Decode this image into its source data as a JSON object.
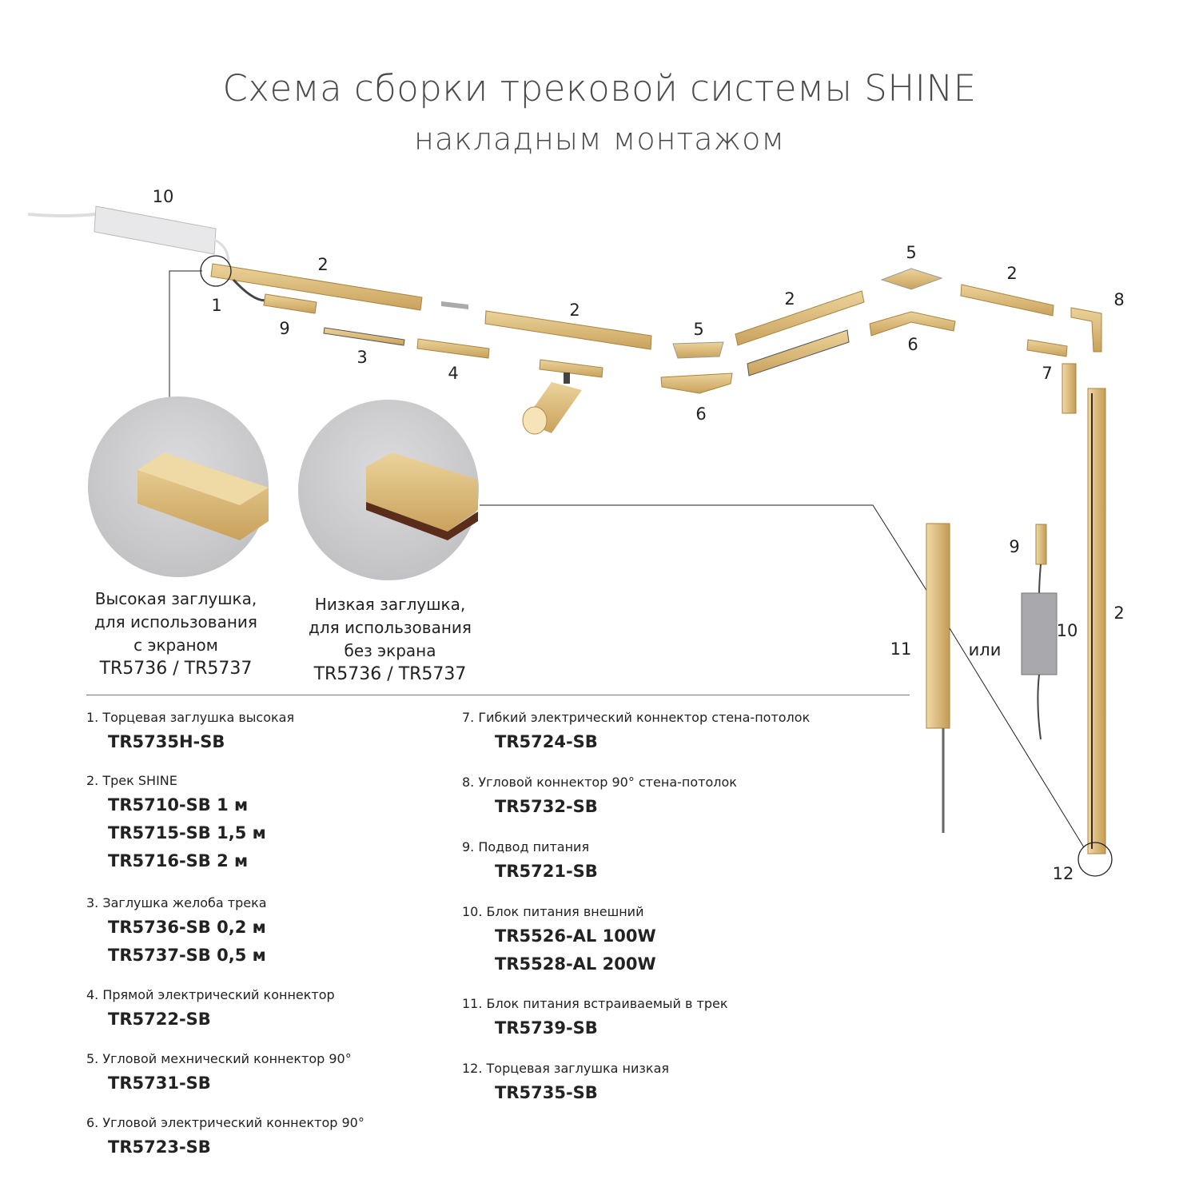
{
  "title": "Схема сборки трековой системы SHINE",
  "subtitle": "накладным монтажом",
  "colors": {
    "gold": "#d8b674",
    "gold_dark": "#b8944f",
    "grey_circle": "#cfcfd1",
    "text": "#222222"
  },
  "callouts": {
    "c10a": "10",
    "c2a": "2",
    "c1": "1",
    "c9a": "9",
    "c3": "3",
    "c4": "4",
    "c2b": "2",
    "c5a": "5",
    "c6a": "6",
    "c2c": "2",
    "c5b": "5",
    "c6b": "6",
    "c2d": "2",
    "c8": "8",
    "c7": "7",
    "c9b": "9",
    "c10b": "10",
    "c2e": "2",
    "c11": "11",
    "or": "или",
    "c12": "12"
  },
  "details": [
    {
      "lines": [
        "Высокая заглушка,",
        "для использования",
        "с экраном",
        "TR5736 / TR5737"
      ]
    },
    {
      "lines": [
        "Низкая заглушка,",
        "для использования",
        "без экрана",
        "TR5736 / TR5737"
      ]
    }
  ],
  "parts_left": [
    {
      "name": "1. Торцевая заглушка высокая",
      "codes": [
        "TR5735H-SB"
      ]
    },
    {
      "name": "2. Трек SHINE",
      "codes": [
        "TR5710-SB  1 м",
        "TR5715-SB 1,5 м",
        "TR5716-SB 2 м"
      ]
    },
    {
      "name": "3. Заглушка желоба трека",
      "codes": [
        "TR5736-SB  0,2 м",
        "TR5737-SB  0,5 м"
      ]
    },
    {
      "name": "4. Прямой электрический коннектор",
      "codes": [
        "TR5722-SB"
      ]
    },
    {
      "name": "5. Угловой мехнический коннектор 90°",
      "codes": [
        "TR5731-SB"
      ]
    },
    {
      "name": "6. Угловой электрический коннектор 90°",
      "codes": [
        "TR5723-SB"
      ]
    }
  ],
  "parts_right": [
    {
      "name": "7. Гибкий электрический коннектор стена-потолок",
      "codes": [
        "TR5724-SB"
      ]
    },
    {
      "name": "8. Угловой коннектор 90° стена-потолок",
      "codes": [
        "TR5732-SB"
      ]
    },
    {
      "name": "9. Подвод питания",
      "codes": [
        "TR5721-SB"
      ]
    },
    {
      "name": "10. Блок питания внешний",
      "codes": [
        "TR5526-AL 100W",
        "TR5528-AL 200W"
      ]
    },
    {
      "name": "11. Блок питания встраиваемый в трек",
      "codes": [
        "TR5739-SB"
      ]
    },
    {
      "name": "12. Торцевая заглушка низкая",
      "codes": [
        "TR5735-SB"
      ]
    }
  ]
}
